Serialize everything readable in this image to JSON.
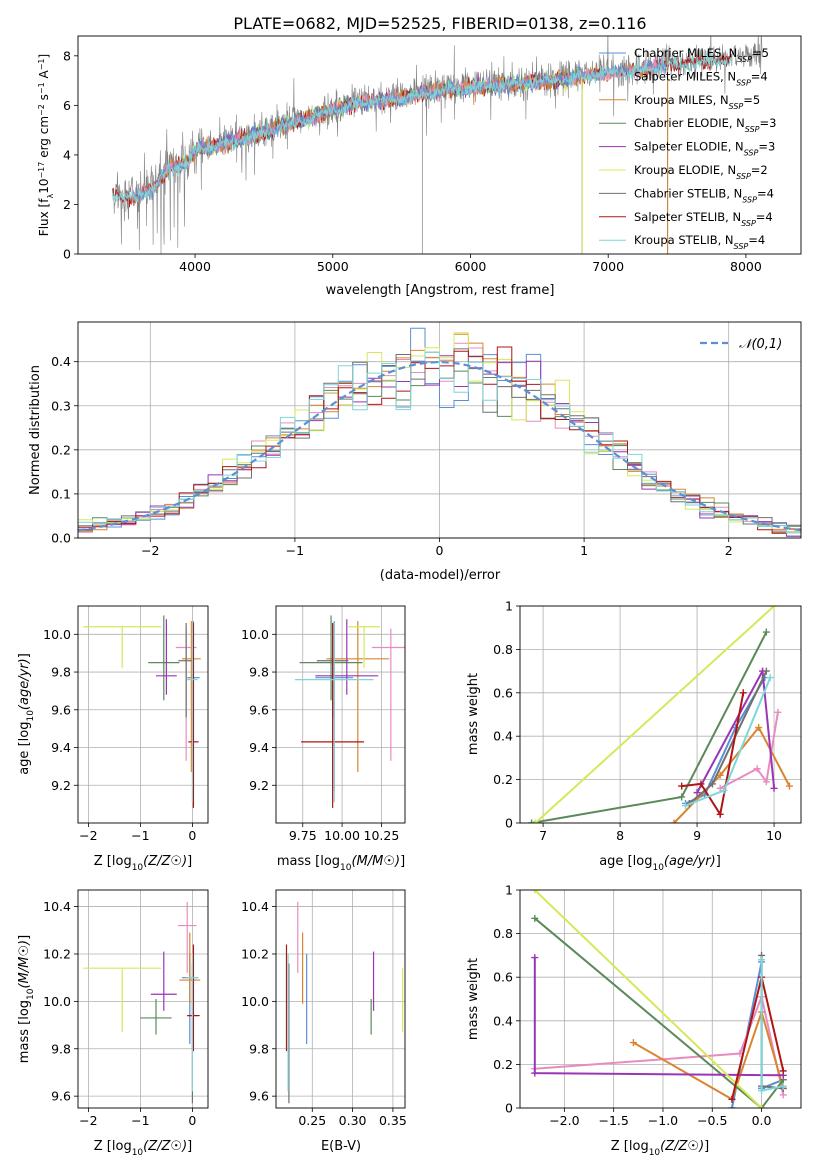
{
  "figure_title": "PLATE=0682, MJD=52525, FIBERID=0138, z=0.116",
  "colors": {
    "Chabrier MILES": "#5b8fd6",
    "Salpeter MILES": "#e88cc0",
    "Kroupa MILES": "#d98530",
    "Chabrier ELODIE": "#5a8a5a",
    "Salpeter ELODIE": "#9a35b5",
    "Kroupa ELODIE": "#d6e85a",
    "Chabrier STELIB": "#707070",
    "Salpeter STELIB": "#b01515",
    "Kroupa STELIB": "#7fd6d6",
    "data": "#808080",
    "normal": "#5b8fd6"
  },
  "chart_data": [
    {
      "id": "spectrum",
      "type": "line",
      "title": "PLATE=0682, MJD=52525, FIBERID=0138, z=0.116",
      "xlabel": "wavelength [Angstrom, rest frame]",
      "ylabel": "Flux [f_λ 10^-17 erg cm^-2 s^-1 A^-1]",
      "ylabel_parts": {
        "a": "Flux [f",
        "b": "λ",
        "c": "10",
        "d": "−17",
        "e": " erg cm",
        "f": "−2",
        "g": " s",
        "h": "−1",
        "i": " A",
        "j": "−1",
        "k": "]"
      },
      "xlim": [
        3150,
        8400
      ],
      "ylim": [
        0,
        8.8
      ],
      "xticks": [
        4000,
        5000,
        6000,
        7000,
        8000
      ],
      "yticks": [
        0,
        2,
        4,
        6,
        8
      ],
      "legend_position": "top-right",
      "legend": [
        {
          "label": "Chabrier MILES",
          "n": "5"
        },
        {
          "label": "Salpeter MILES",
          "n": "4"
        },
        {
          "label": "Kroupa MILES",
          "n": "5"
        },
        {
          "label": "Chabrier ELODIE",
          "n": "3"
        },
        {
          "label": "Salpeter ELODIE",
          "n": "3"
        },
        {
          "label": "Kroupa ELODIE",
          "n": "2"
        },
        {
          "label": "Chabrier STELIB",
          "n": "4"
        },
        {
          "label": "Salpeter STELIB",
          "n": "4"
        },
        {
          "label": "Kroupa STELIB",
          "n": "4"
        }
      ],
      "legend_suffix": {
        "pre": ", N",
        "sub": "SSP",
        "eq": "="
      },
      "data_continuum": [
        [
          3400,
          2.5
        ],
        [
          3500,
          2.3
        ],
        [
          3700,
          2.7
        ],
        [
          3800,
          3.5
        ],
        [
          3950,
          3.8
        ],
        [
          4000,
          4.3
        ],
        [
          4200,
          4.5
        ],
        [
          4400,
          4.8
        ],
        [
          4600,
          5.2
        ],
        [
          4800,
          5.5
        ],
        [
          5000,
          5.9
        ],
        [
          5200,
          6.2
        ],
        [
          5400,
          6.3
        ],
        [
          5600,
          6.5
        ],
        [
          5800,
          6.7
        ],
        [
          6000,
          6.8
        ],
        [
          6200,
          6.9
        ],
        [
          6400,
          7.0
        ],
        [
          6600,
          7.1
        ],
        [
          6800,
          7.25
        ],
        [
          7000,
          7.4
        ],
        [
          7200,
          7.5
        ],
        [
          7400,
          7.7
        ],
        [
          7600,
          7.8
        ],
        [
          7800,
          7.9
        ],
        [
          8000,
          8.0
        ],
        [
          8100,
          8.1
        ]
      ]
    },
    {
      "id": "residuals",
      "type": "line",
      "xlabel": "(data-model)/error",
      "ylabel": "Normed distribution",
      "xlim": [
        -2.5,
        2.5
      ],
      "ylim": [
        0,
        0.49
      ],
      "xticks": [
        -2,
        -1,
        0,
        1,
        2
      ],
      "yticks": [
        0.0,
        0.1,
        0.2,
        0.3,
        0.4
      ],
      "legend_position": "top-right",
      "legend_label": "𝒩(0,1)",
      "bins": 50,
      "normal_mean": 0,
      "normal_sigma": 1
    },
    {
      "id": "age-vs-Z",
      "type": "scatter",
      "xlabel": "Z [log10(Z/Z☉)]",
      "ylabel": "age [log10(age/yr)]",
      "xlim": [
        -2.2,
        0.3
      ],
      "ylim": [
        9.0,
        10.15
      ],
      "xticks": [
        -2,
        -1,
        0
      ],
      "yticks": [
        9.2,
        9.4,
        9.6,
        9.8,
        10.0
      ],
      "points": [
        {
          "model": "Chabrier MILES",
          "x": 0.02,
          "y": 9.77,
          "xerr": 0.12,
          "yerr": [
            0.6,
            0.3
          ]
        },
        {
          "model": "Salpeter MILES",
          "x": -0.12,
          "y": 9.93,
          "xerr": 0.2,
          "yerr": [
            0.6,
            0.1
          ]
        },
        {
          "model": "Kroupa MILES",
          "x": -0.02,
          "y": 9.87,
          "xerr": 0.18,
          "yerr": [
            0.6,
            0.2
          ]
        },
        {
          "model": "Chabrier ELODIE",
          "x": -0.55,
          "y": 9.85,
          "xerr": 0.3,
          "yerr": [
            0.2,
            0.25
          ]
        },
        {
          "model": "Salpeter ELODIE",
          "x": -0.5,
          "y": 9.78,
          "xerr": 0.2,
          "yerr": [
            0.1,
            0.3
          ]
        },
        {
          "model": "Kroupa ELODIE",
          "x": -1.35,
          "y": 10.04,
          "xerr": 0.75,
          "yerr": [
            0.22,
            0.0
          ]
        },
        {
          "model": "Chabrier STELIB",
          "x": -0.12,
          "y": 9.86,
          "xerr": 0.15,
          "yerr": [
            0.3,
            0.2
          ]
        },
        {
          "model": "Salpeter STELIB",
          "x": 0.02,
          "y": 9.43,
          "xerr": 0.1,
          "yerr": [
            0.35,
            0.63
          ]
        },
        {
          "model": "Kroupa STELIB",
          "x": 0.0,
          "y": 9.76,
          "xerr": 0.1,
          "yerr": [
            0.65,
            0.3
          ]
        }
      ]
    },
    {
      "id": "age-vs-mass",
      "type": "scatter",
      "xlabel": "mass [log10(M/M☉)]",
      "ylabel": "",
      "xlim": [
        9.58,
        10.4
      ],
      "ylim": [
        9.0,
        10.15
      ],
      "xticks": [
        9.75,
        10.0,
        10.25
      ],
      "xticklabels": [
        "9.75",
        "10.00",
        "10.25"
      ],
      "yticks": [
        9.2,
        9.4,
        9.6,
        9.8,
        10.0
      ],
      "points": [
        {
          "model": "Chabrier MILES",
          "x": 9.95,
          "y": 9.77,
          "xerr": 0.12,
          "yerr": [
            0.6,
            0.3
          ]
        },
        {
          "model": "Salpeter MILES",
          "x": 10.31,
          "y": 9.93,
          "xerr": 0.12,
          "yerr": [
            0.6,
            0.1
          ]
        },
        {
          "model": "Kroupa MILES",
          "x": 10.1,
          "y": 9.87,
          "xerr": 0.2,
          "yerr": [
            0.6,
            0.2
          ]
        },
        {
          "model": "Chabrier ELODIE",
          "x": 9.93,
          "y": 9.85,
          "xerr": 0.2,
          "yerr": [
            0.2,
            0.25
          ]
        },
        {
          "model": "Salpeter ELODIE",
          "x": 10.03,
          "y": 9.78,
          "xerr": 0.2,
          "yerr": [
            0.1,
            0.3
          ]
        },
        {
          "model": "Kroupa ELODIE",
          "x": 10.14,
          "y": 10.04,
          "xerr": 0.1,
          "yerr": [
            0.22,
            0.0
          ]
        },
        {
          "model": "Chabrier STELIB",
          "x": 9.94,
          "y": 9.86,
          "xerr": 0.1,
          "yerr": [
            0.3,
            0.2
          ]
        },
        {
          "model": "Salpeter STELIB",
          "x": 9.94,
          "y": 9.43,
          "xerr": 0.2,
          "yerr": [
            0.35,
            0.63
          ]
        },
        {
          "model": "Kroupa STELIB",
          "x": 9.95,
          "y": 9.76,
          "xerr": 0.25,
          "yerr": [
            0.65,
            0.3
          ]
        }
      ]
    },
    {
      "id": "mass-weight-vs-age",
      "type": "line",
      "xlabel": "age [log10(age/yr)]",
      "ylabel": "mass weight",
      "xlim": [
        6.7,
        10.35
      ],
      "ylim": [
        0,
        1.0
      ],
      "xticks": [
        7,
        8,
        9,
        10
      ],
      "yticks": [
        0.0,
        0.2,
        0.4,
        0.6,
        0.8,
        1.0
      ],
      "series": [
        {
          "model": "Chabrier MILES",
          "points": [
            [
              8.85,
              0.09
            ],
            [
              9.1,
              0.13
            ],
            [
              9.5,
              0.44
            ],
            [
              9.88,
              0.67
            ]
          ]
        },
        {
          "model": "Salpeter MILES",
          "points": [
            [
              9.3,
              0.16
            ],
            [
              9.78,
              0.25
            ],
            [
              9.9,
              0.19
            ],
            [
              10.05,
              0.51
            ]
          ]
        },
        {
          "model": "Kroupa MILES",
          "points": [
            [
              8.7,
              0.0
            ],
            [
              9.3,
              0.22
            ],
            [
              9.8,
              0.44
            ],
            [
              10.2,
              0.17
            ]
          ]
        },
        {
          "model": "Chabrier ELODIE",
          "points": [
            [
              6.85,
              0.0
            ],
            [
              8.8,
              0.12
            ],
            [
              9.9,
              0.88
            ]
          ]
        },
        {
          "model": "Salpeter ELODIE",
          "points": [
            [
              9.0,
              0.14
            ],
            [
              9.85,
              0.7
            ],
            [
              10.0,
              0.16
            ]
          ]
        },
        {
          "model": "Kroupa ELODIE",
          "points": [
            [
              6.9,
              0.0
            ],
            [
              10.0,
              1.0
            ]
          ]
        },
        {
          "model": "Chabrier STELIB",
          "points": [
            [
              8.9,
              0.09
            ],
            [
              9.2,
              0.18
            ],
            [
              9.9,
              0.7
            ]
          ]
        },
        {
          "model": "Salpeter STELIB",
          "points": [
            [
              8.8,
              0.17
            ],
            [
              9.05,
              0.18
            ],
            [
              9.3,
              0.04
            ],
            [
              9.6,
              0.6
            ]
          ]
        },
        {
          "model": "Kroupa STELIB",
          "points": [
            [
              8.85,
              0.08
            ],
            [
              9.35,
              0.15
            ],
            [
              9.95,
              0.67
            ]
          ]
        }
      ]
    },
    {
      "id": "mass-vs-Z",
      "type": "scatter",
      "xlabel": "Z [log10(Z/Z☉)]",
      "ylabel": "mass [log10(M/M☉)]",
      "xlim": [
        -2.2,
        0.3
      ],
      "ylim": [
        9.55,
        10.47
      ],
      "xticks": [
        -2,
        -1,
        0
      ],
      "yticks": [
        9.6,
        9.8,
        10.0,
        10.2,
        10.4
      ],
      "points": [
        {
          "model": "Chabrier MILES",
          "x": -0.05,
          "y": 10.1,
          "xerr": 0.15,
          "yerr": [
            0.28,
            0.1
          ]
        },
        {
          "model": "Salpeter MILES",
          "x": -0.1,
          "y": 10.32,
          "xerr": 0.18,
          "yerr": [
            0.2,
            0.1
          ]
        },
        {
          "model": "Kroupa MILES",
          "x": -0.05,
          "y": 10.09,
          "xerr": 0.2,
          "yerr": [
            0.1,
            0.2
          ]
        },
        {
          "model": "Chabrier ELODIE",
          "x": -0.7,
          "y": 9.93,
          "xerr": 0.3,
          "yerr": [
            0.07,
            0.08
          ]
        },
        {
          "model": "Salpeter ELODIE",
          "x": -0.55,
          "y": 10.03,
          "xerr": 0.25,
          "yerr": [
            0.07,
            0.18
          ]
        },
        {
          "model": "Kroupa ELODIE",
          "x": -1.35,
          "y": 10.14,
          "xerr": 0.75,
          "yerr": [
            0.27,
            0.0
          ]
        },
        {
          "model": "Chabrier STELIB",
          "x": 0.0,
          "y": 9.94,
          "xerr": 0.1,
          "yerr": [
            0.37,
            0.22
          ]
        },
        {
          "model": "Salpeter STELIB",
          "x": 0.02,
          "y": 9.94,
          "xerr": 0.12,
          "yerr": [
            0.15,
            0.3
          ]
        },
        {
          "model": "Kroupa STELIB",
          "x": 0.0,
          "y": 10.1,
          "xerr": 0.12,
          "yerr": [
            0.48,
            0.1
          ]
        }
      ]
    },
    {
      "id": "mass-vs-ebv",
      "type": "scatter",
      "xlabel": "E(B-V)",
      "ylabel": "",
      "xlim": [
        0.205,
        0.365
      ],
      "ylim": [
        9.55,
        10.47
      ],
      "xticks": [
        0.25,
        0.3,
        0.35
      ],
      "xticklabels": [
        "0.25",
        "0.30",
        "0.35"
      ],
      "yticks": [
        9.6,
        9.8,
        10.0,
        10.2,
        10.4
      ],
      "points": [
        {
          "model": "Chabrier MILES",
          "x": 0.243,
          "y": 10.1,
          "yerr": [
            0.28,
            0.1
          ]
        },
        {
          "model": "Salpeter MILES",
          "x": 0.232,
          "y": 10.32,
          "yerr": [
            0.2,
            0.1
          ]
        },
        {
          "model": "Kroupa MILES",
          "x": 0.238,
          "y": 10.09,
          "yerr": [
            0.1,
            0.2
          ]
        },
        {
          "model": "Chabrier ELODIE",
          "x": 0.323,
          "y": 9.93,
          "yerr": [
            0.07,
            0.08
          ]
        },
        {
          "model": "Salpeter ELODIE",
          "x": 0.326,
          "y": 10.03,
          "yerr": [
            0.07,
            0.18
          ]
        },
        {
          "model": "Kroupa ELODIE",
          "x": 0.362,
          "y": 10.14,
          "yerr": [
            0.27,
            0.0
          ]
        },
        {
          "model": "Chabrier STELIB",
          "x": 0.221,
          "y": 9.94,
          "yerr": [
            0.37,
            0.22
          ]
        },
        {
          "model": "Salpeter STELIB",
          "x": 0.218,
          "y": 9.94,
          "yerr": [
            0.15,
            0.3
          ]
        },
        {
          "model": "Kroupa STELIB",
          "x": 0.22,
          "y": 10.1,
          "yerr": [
            0.48,
            0.1
          ]
        }
      ]
    },
    {
      "id": "mass-weight-vs-Z",
      "type": "line",
      "xlabel": "Z [log10(Z/Z☉)]",
      "ylabel": "mass weight",
      "xlim": [
        -2.45,
        0.4
      ],
      "ylim": [
        0,
        1.0
      ],
      "xticks": [
        -2.0,
        -1.5,
        -1.0,
        -0.5,
        0.0
      ],
      "xticklabels": [
        "−2.0",
        "−1.5",
        "−1.0",
        "−0.5",
        "0.0"
      ],
      "yticks": [
        0.0,
        0.2,
        0.4,
        0.6,
        0.8,
        1.0
      ],
      "series": [
        {
          "model": "Chabrier MILES",
          "points": [
            [
              -0.3,
              0.0
            ],
            [
              0.0,
              0.67
            ],
            [
              0.0,
              0.09
            ],
            [
              0.22,
              0.13
            ]
          ]
        },
        {
          "model": "Salpeter MILES",
          "points": [
            [
              -2.3,
              0.18
            ],
            [
              -0.22,
              0.25
            ],
            [
              0.0,
              0.51
            ],
            [
              0.22,
              0.06
            ]
          ]
        },
        {
          "model": "Kroupa MILES",
          "points": [
            [
              -1.3,
              0.3
            ],
            [
              -0.3,
              0.04
            ],
            [
              0.0,
              0.44
            ],
            [
              0.22,
              0.09
            ]
          ]
        },
        {
          "model": "Chabrier ELODIE",
          "points": [
            [
              -2.3,
              0.87
            ],
            [
              0.0,
              0.0
            ],
            [
              0.22,
              0.13
            ]
          ]
        },
        {
          "model": "Salpeter ELODIE",
          "points": [
            [
              -2.3,
              0.69
            ],
            [
              -2.3,
              0.16
            ],
            [
              0.22,
              0.15
            ]
          ]
        },
        {
          "model": "Kroupa ELODIE",
          "points": [
            [
              -2.3,
              1.0
            ],
            [
              0.0,
              0.0
            ]
          ]
        },
        {
          "model": "Chabrier STELIB",
          "points": [
            [
              0.0,
              0.7
            ],
            [
              0.0,
              0.1
            ],
            [
              0.22,
              0.09
            ]
          ]
        },
        {
          "model": "Salpeter STELIB",
          "points": [
            [
              -0.3,
              0.04
            ],
            [
              0.0,
              0.6
            ],
            [
              0.22,
              0.17
            ]
          ]
        },
        {
          "model": "Kroupa STELIB",
          "points": [
            [
              0.0,
              0.68
            ],
            [
              0.0,
              0.08
            ],
            [
              0.22,
              0.1
            ]
          ]
        }
      ]
    }
  ]
}
